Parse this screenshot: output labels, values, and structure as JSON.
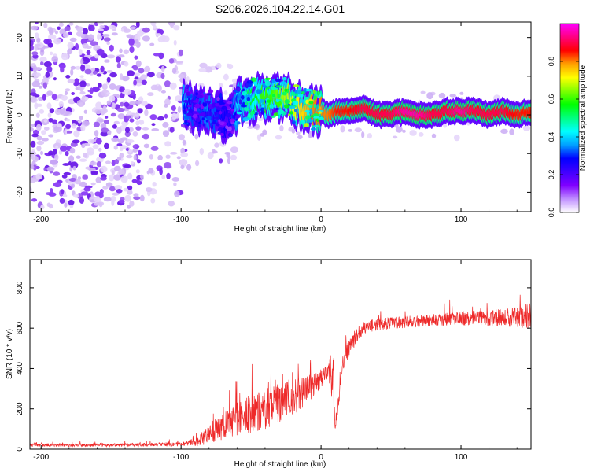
{
  "chart_data": [
    {
      "type": "heatmap",
      "title": "S206.2026.104.22.14.G01",
      "xlabel": "Height of straight line (km)",
      "ylabel": "Frequency (Hz)",
      "xlim": [
        -208,
        150
      ],
      "ylim": [
        -25,
        24
      ],
      "xticks": [
        -200,
        -100,
        0,
        100
      ],
      "yticks": [
        -20,
        -10,
        0,
        10,
        20
      ],
      "colorbar": {
        "label": "Normalized spectral amplitude",
        "range": [
          0,
          1
        ],
        "ticks": [
          "0.0",
          "0.2",
          "0.4",
          "0.6",
          "0.8"
        ],
        "tick_values": [
          0,
          0.2,
          0.4,
          0.6,
          0.8
        ],
        "colors": [
          "#ffffff",
          "#c090ff",
          "#8000ff",
          "#4000ff",
          "#0000ff",
          "#00a0ff",
          "#00ffff",
          "#00ff80",
          "#00ff00",
          "#80ff00",
          "#ffff00",
          "#ffa000",
          "#ff0000",
          "#ff0080",
          "#ff00ff"
        ]
      },
      "signal_track": {
        "x": [
          -98,
          -90,
          -80,
          -72,
          -65,
          -58,
          -50,
          -42,
          -35,
          -28,
          -20,
          -12,
          -5,
          0,
          5,
          12,
          20,
          30,
          40,
          50,
          60,
          70,
          80,
          90,
          100,
          110,
          120,
          130,
          140,
          150
        ],
        "frequency_hz": [
          3,
          1,
          2,
          0,
          -1,
          3,
          4,
          5,
          4,
          5,
          3,
          2,
          1,
          1,
          0,
          1,
          1,
          2,
          0,
          0,
          1,
          0,
          0,
          1,
          1,
          1,
          0,
          1,
          0,
          1
        ],
        "amplitude": [
          0.4,
          0.3,
          0.35,
          0.3,
          0.25,
          0.45,
          0.55,
          0.6,
          0.6,
          0.65,
          0.7,
          0.75,
          0.8,
          0.8,
          0.8,
          0.85,
          0.85,
          0.9,
          0.9,
          0.9,
          0.95,
          0.95,
          0.9,
          0.9,
          0.95,
          0.9,
          0.9,
          0.9,
          0.85,
          0.85
        ]
      }
    },
    {
      "type": "line",
      "title": "",
      "xlabel": "Height of straight line (km)",
      "ylabel": "SNR (10 * v/v)",
      "xlim": [
        -208,
        150
      ],
      "ylim": [
        0,
        940
      ],
      "xticks": [
        -200,
        -100,
        0,
        100
      ],
      "yticks": [
        0,
        200,
        400,
        600,
        800
      ],
      "color": "#ee2a2a",
      "series_envelope": {
        "x": [
          -208,
          -150,
          -100,
          -90,
          -80,
          -70,
          -60,
          -50,
          -40,
          -30,
          -20,
          -10,
          0,
          5,
          8,
          10,
          12,
          15,
          20,
          25,
          30,
          40,
          60,
          80,
          100,
          120,
          140,
          150
        ],
        "mean": [
          20,
          20,
          25,
          35,
          70,
          110,
          150,
          175,
          200,
          230,
          260,
          300,
          350,
          380,
          420,
          90,
          200,
          420,
          500,
          560,
          600,
          620,
          630,
          640,
          650,
          650,
          655,
          660
        ],
        "noise": [
          15,
          15,
          20,
          40,
          90,
          130,
          170,
          190,
          200,
          200,
          190,
          150,
          100,
          60,
          350,
          50,
          80,
          80,
          80,
          80,
          60,
          60,
          60,
          60,
          70,
          80,
          100,
          140
        ]
      }
    }
  ]
}
